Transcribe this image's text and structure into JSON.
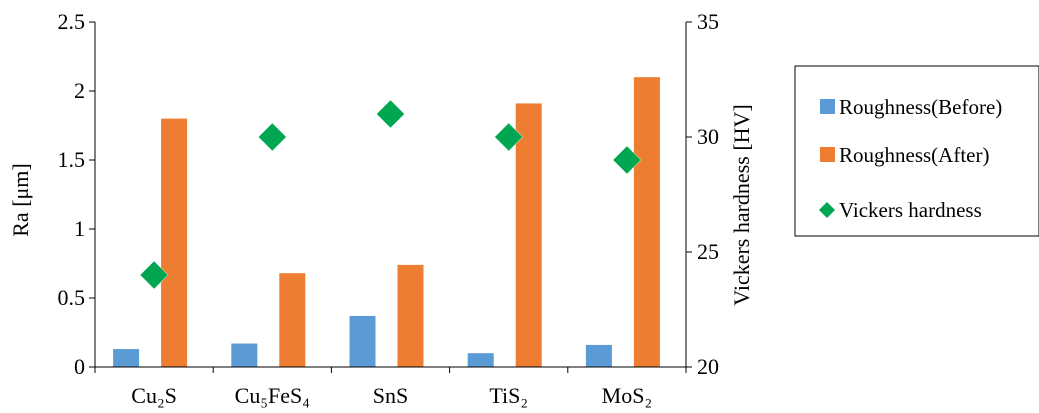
{
  "chart_data": {
    "type": "bar",
    "categories": [
      "Cu₂S",
      "Cu₅FeS₄",
      "SnS",
      "TiS₂",
      "MoS₂"
    ],
    "series": [
      {
        "name": "Roughness(Before)",
        "type": "bar",
        "axis": "left",
        "color": "#5b9bd5",
        "values": [
          0.13,
          0.17,
          0.37,
          0.1,
          0.16
        ]
      },
      {
        "name": "Roughness(After)",
        "type": "bar",
        "axis": "left",
        "color": "#ed7d31",
        "values": [
          1.8,
          0.68,
          0.74,
          1.91,
          2.1
        ]
      },
      {
        "name": "Vickers hardness",
        "type": "scatter",
        "marker": "diamond",
        "axis": "right",
        "color": "#00a651",
        "values": [
          24,
          30,
          31,
          30,
          29
        ]
      }
    ],
    "ylabel": "Ra [μm]",
    "ylim": [
      0,
      2.5
    ],
    "yticks": [
      "0",
      "0.5",
      "1",
      "1.5",
      "2",
      "2.5"
    ],
    "y2label": "Vickers hardness [HV]",
    "y2lim": [
      20,
      35
    ],
    "y2ticks": [
      "20",
      "25",
      "30",
      "35"
    ],
    "grid": false,
    "legend_position": "right"
  }
}
